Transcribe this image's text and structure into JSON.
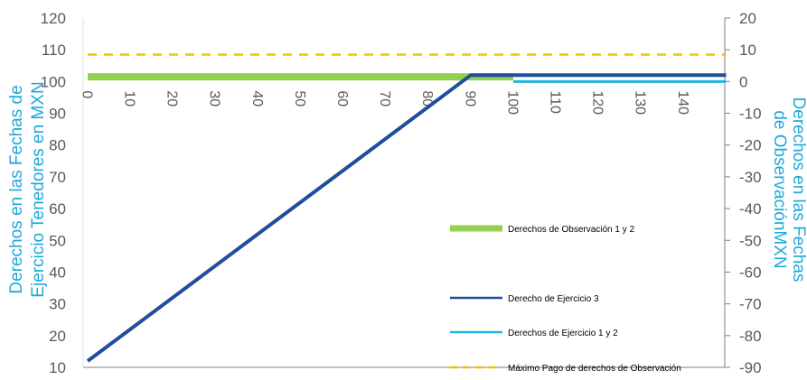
{
  "chart_data": {
    "type": "line",
    "title": "",
    "ylabel_left": "Derechos en las Fechas de Ejercicio Tenedores en MXN",
    "ylabel_right": "Derechos en las Fechas de ObservaciónMXN",
    "xlabel": "",
    "x_ticks": [
      0,
      10,
      20,
      30,
      40,
      50,
      60,
      70,
      80,
      90,
      100,
      110,
      120,
      130,
      140
    ],
    "x_range": [
      0,
      150
    ],
    "y_left_ticks": [
      10,
      20,
      30,
      40,
      50,
      60,
      70,
      80,
      90,
      100,
      110,
      120
    ],
    "y_left_range": [
      10,
      120
    ],
    "y_right_ticks": [
      -90,
      -80,
      -70,
      -60,
      -50,
      -40,
      -30,
      -20,
      -10,
      0,
      10,
      20
    ],
    "y_right_range": [
      -90,
      20
    ],
    "grid": false,
    "legend_position": "right",
    "series": [
      {
        "name": "Derechos de Observación 1 y 2",
        "axis": "right",
        "style": "solid-thick",
        "color": "#92d050",
        "points": [
          [
            0,
            1.5
          ],
          [
            100,
            1.5
          ]
        ]
      },
      {
        "name": "Derecho de Ejercicio 3",
        "axis": "left",
        "style": "solid",
        "color": "#1f4e9c",
        "points": [
          [
            0,
            12
          ],
          [
            90,
            102
          ],
          [
            150,
            102
          ]
        ]
      },
      {
        "name": "Derechos de Ejercicio 1 y 2",
        "axis": "right",
        "style": "solid",
        "color": "#1fb4e0",
        "points": [
          [
            100,
            0
          ],
          [
            150,
            0
          ]
        ]
      },
      {
        "name": "Máximo Pago de derechos de Observación",
        "axis": "right",
        "style": "dashed",
        "color": "#f5c200",
        "points": [
          [
            0,
            8.5
          ],
          [
            150,
            8.5
          ]
        ]
      }
    ]
  },
  "colors": {
    "axis_label": "#1fa8d9",
    "tick_label": "#595959",
    "axis_line": "#7f7f7f"
  }
}
